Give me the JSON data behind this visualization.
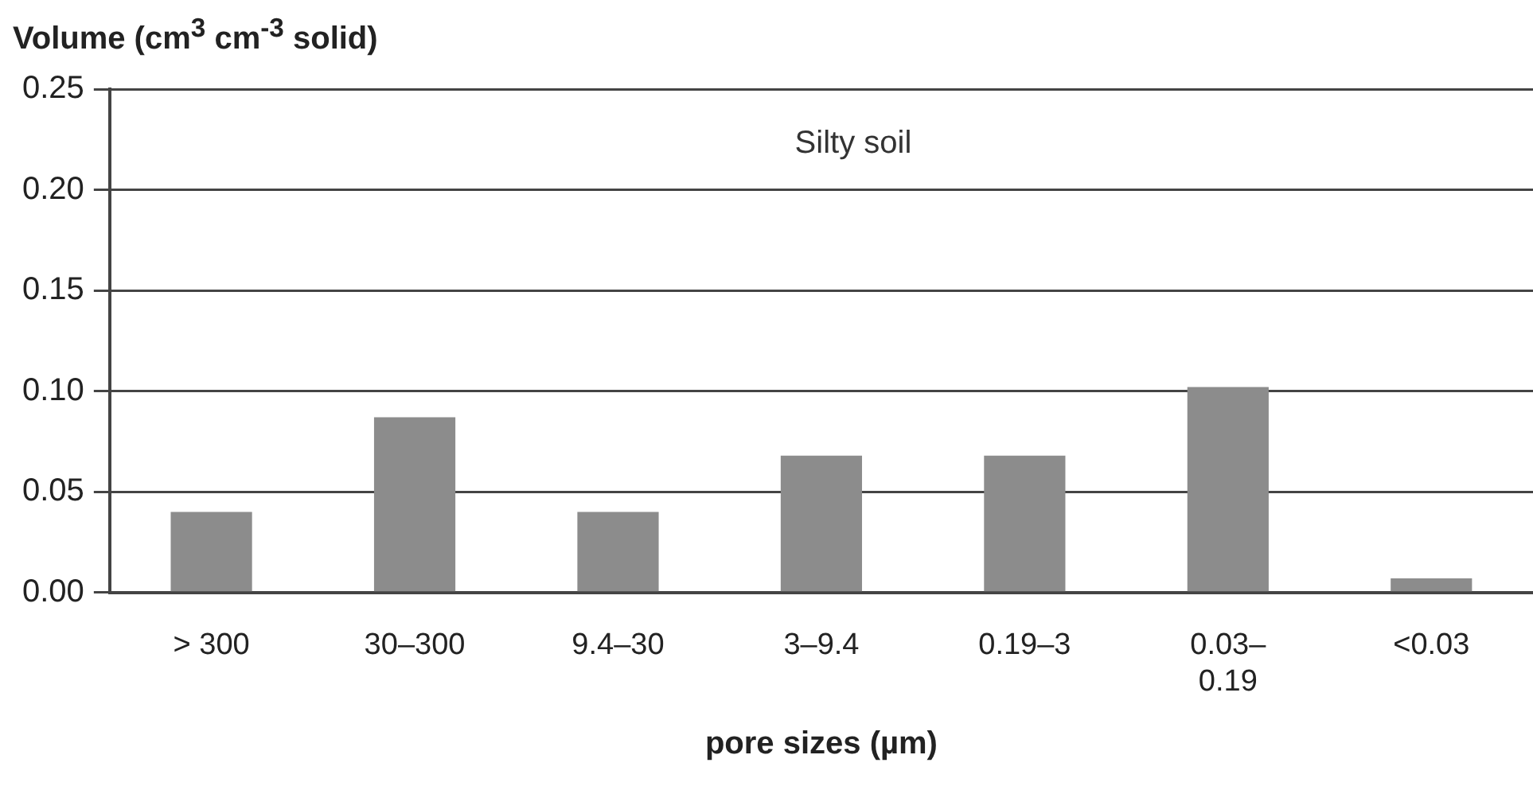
{
  "chart_data": {
    "type": "bar",
    "ylabel": "Volume (cm$^{3}$ cm$^{-3}$ solid)",
    "xlabel": "pore sizes (µm)",
    "annotations": [
      "Silty soil"
    ],
    "categories": [
      "> 300",
      "30–300",
      "9.4–30",
      "3–9.4",
      "0.19–3",
      "0.03–0.19",
      "<0.03"
    ],
    "values": [
      0.04,
      0.087,
      0.04,
      0.068,
      0.068,
      0.102,
      0.007
    ],
    "color": "#8c8c8c",
    "ylim": [
      0,
      0.25
    ],
    "yticks": [
      {
        "value": 0,
        "label": "0.00"
      },
      {
        "value": 0.05,
        "label": "0.05"
      },
      {
        "value": 0.1,
        "label": "0.10"
      },
      {
        "value": 0.15,
        "label": "0.15"
      },
      {
        "value": 0.2,
        "label": "0.20"
      },
      {
        "value": 0.25,
        "label": "0.25"
      }
    ],
    "grid": "y",
    "legend": false
  }
}
